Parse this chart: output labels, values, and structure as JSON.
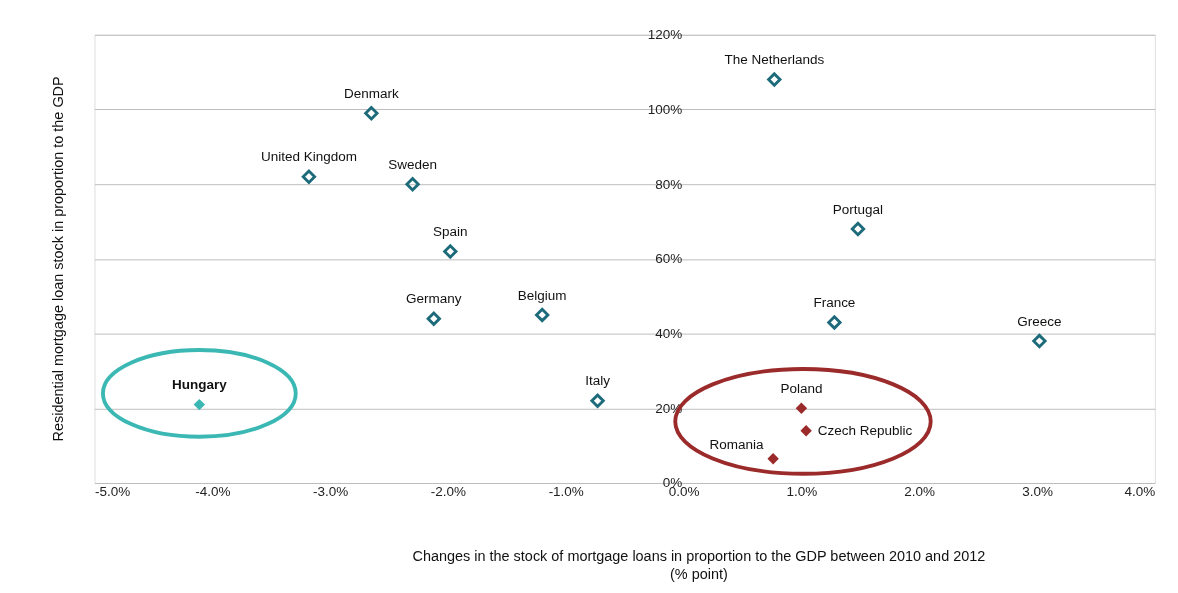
{
  "chart_data": {
    "type": "scatter",
    "xlabel": "Changes in the stock of mortgage loans in proportion to the GDP between 2010 and 2012\n(% point)",
    "ylabel": "Residential mortgage loan stock in proportion to the GDP",
    "series": [
      {
        "color": "#1d6b7a",
        "x": [
          0.77,
          -2.65,
          -3.18,
          -2.3,
          -1.98,
          -2.12,
          -1.2,
          -0.73,
          1.48,
          1.28,
          3.02
        ],
        "values": [
          108,
          99,
          82,
          80,
          62,
          44,
          45,
          22,
          68,
          43,
          38
        ]
      },
      {
        "color": "#3bb8b4",
        "x": [
          -4.11
        ],
        "values": [
          21
        ]
      },
      {
        "color": "#9b2a2a",
        "x": [
          1.0,
          1.04,
          0.76
        ],
        "values": [
          20,
          14,
          6.5
        ]
      }
    ],
    "annotations": [
      {
        "text": "The Netherlands",
        "x": 0.77,
        "y": 108
      },
      {
        "text": "Denmark",
        "x": -2.65,
        "y": 99
      },
      {
        "text": "United Kingdom",
        "x": -3.18,
        "y": 82
      },
      {
        "text": "Sweden",
        "x": -2.3,
        "y": 80
      },
      {
        "text": "Spain",
        "x": -1.98,
        "y": 62
      },
      {
        "text": "Germany",
        "x": -2.12,
        "y": 44
      },
      {
        "text": "Belgium",
        "x": -1.2,
        "y": 45
      },
      {
        "text": "Italy",
        "x": -0.73,
        "y": 22
      },
      {
        "text": "Portugal",
        "x": 1.48,
        "y": 68
      },
      {
        "text": "France",
        "x": 1.28,
        "y": 43
      },
      {
        "text": "Greece",
        "x": 3.02,
        "y": 38
      },
      {
        "text": "Hungary",
        "x": -4.11,
        "y": 21
      },
      {
        "text": "Poland",
        "x": 1.0,
        "y": 20
      },
      {
        "text": "Czech Republic",
        "x": 1.04,
        "y": 14
      },
      {
        "text": "Romania",
        "x": 0.76,
        "y": 6.5
      }
    ],
    "xlim": [
      -5,
      4
    ],
    "xticks": [
      {
        "value": -5,
        "label": "-5.0%"
      },
      {
        "value": -4,
        "label": "-4.0%"
      },
      {
        "value": -3,
        "label": "-3.0%"
      },
      {
        "value": -2,
        "label": "-2.0%"
      },
      {
        "value": -1,
        "label": "-1.0%"
      },
      {
        "value": 0,
        "label": "0.0%"
      },
      {
        "value": 1,
        "label": "1.0%"
      },
      {
        "value": 2,
        "label": "2.0%"
      },
      {
        "value": 3,
        "label": "3.0%"
      },
      {
        "value": 4,
        "label": "4.0%"
      }
    ],
    "ylim": [
      0,
      120
    ],
    "yticks": [
      {
        "value": 0,
        "label": "0%"
      },
      {
        "value": 20,
        "label": "20%"
      },
      {
        "value": 40,
        "label": "40%"
      },
      {
        "value": 60,
        "label": "60%"
      },
      {
        "value": 80,
        "label": "80%"
      },
      {
        "value": 100,
        "label": "100%"
      },
      {
        "value": 120,
        "label": "120%"
      }
    ],
    "grid": "y",
    "marker": "diamond"
  }
}
